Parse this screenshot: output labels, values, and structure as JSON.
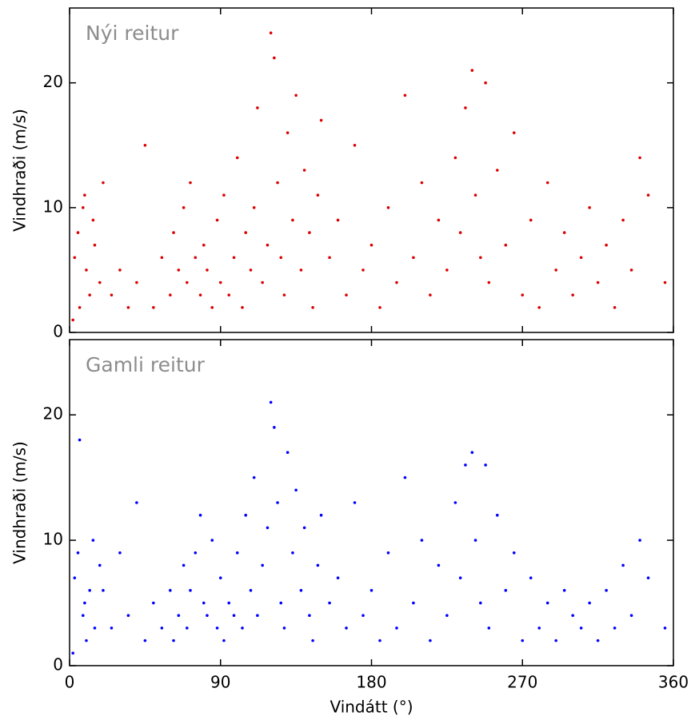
{
  "chart_data": [
    {
      "type": "scatter",
      "annotation": "Nýi reitur",
      "ylabel": "Vindhraði (m/s)",
      "color": "#dd0000",
      "xlim": [
        0,
        360
      ],
      "xticks": [
        0,
        90,
        180,
        270,
        360
      ],
      "ylim": [
        0,
        26
      ],
      "yticks": [
        0,
        10,
        20
      ],
      "x": [
        3,
        5,
        8,
        10,
        12,
        15,
        18,
        6,
        9,
        2,
        14,
        20,
        25,
        30,
        35,
        40,
        45,
        50,
        55,
        60,
        62,
        65,
        68,
        70,
        72,
        75,
        78,
        80,
        82,
        85,
        88,
        90,
        92,
        95,
        98,
        100,
        103,
        105,
        108,
        110,
        112,
        115,
        118,
        120,
        122,
        124,
        126,
        128,
        130,
        133,
        135,
        138,
        140,
        143,
        145,
        148,
        150,
        155,
        160,
        165,
        170,
        175,
        180,
        185,
        190,
        195,
        200,
        205,
        210,
        215,
        220,
        225,
        230,
        233,
        236,
        240,
        242,
        245,
        248,
        250,
        255,
        260,
        265,
        270,
        275,
        280,
        285,
        290,
        295,
        300,
        305,
        310,
        315,
        320,
        325,
        330,
        335,
        340,
        345,
        355
      ],
      "values": [
        6,
        8,
        10,
        5,
        3,
        7,
        4,
        2,
        11,
        1,
        9,
        12,
        3,
        5,
        2,
        4,
        15,
        2,
        6,
        3,
        8,
        5,
        10,
        4,
        12,
        6,
        3,
        7,
        5,
        2,
        9,
        4,
        11,
        3,
        6,
        14,
        2,
        8,
        5,
        10,
        18,
        4,
        7,
        24,
        22,
        12,
        6,
        3,
        16,
        9,
        19,
        5,
        13,
        8,
        2,
        11,
        17,
        6,
        9,
        3,
        15,
        5,
        7,
        2,
        10,
        4,
        19,
        6,
        12,
        3,
        9,
        5,
        14,
        8,
        18,
        21,
        11,
        6,
        20,
        4,
        13,
        7,
        16,
        3,
        9,
        2,
        12,
        5,
        8,
        3,
        6,
        10,
        4,
        7,
        2,
        9,
        5,
        14,
        11,
        4
      ]
    },
    {
      "type": "scatter",
      "annotation": "Gamli reitur",
      "ylabel": "Vindhraði (m/s)",
      "xlabel": "Vindátt (°)",
      "color": "#0000ff",
      "xlim": [
        0,
        360
      ],
      "xticks": [
        0,
        90,
        180,
        270,
        360
      ],
      "ylim": [
        0,
        26
      ],
      "yticks": [
        0,
        10,
        20
      ],
      "x": [
        3,
        5,
        8,
        10,
        12,
        15,
        18,
        6,
        9,
        2,
        14,
        20,
        25,
        30,
        35,
        40,
        45,
        50,
        55,
        60,
        62,
        65,
        68,
        70,
        72,
        75,
        78,
        80,
        82,
        85,
        88,
        90,
        92,
        95,
        98,
        100,
        103,
        105,
        108,
        110,
        112,
        115,
        118,
        120,
        122,
        124,
        126,
        128,
        130,
        133,
        135,
        138,
        140,
        143,
        145,
        148,
        150,
        155,
        160,
        165,
        170,
        175,
        180,
        185,
        190,
        195,
        200,
        205,
        210,
        215,
        220,
        225,
        230,
        233,
        236,
        240,
        242,
        245,
        248,
        250,
        255,
        260,
        265,
        270,
        275,
        280,
        285,
        290,
        295,
        300,
        305,
        310,
        315,
        320,
        325,
        330,
        335,
        340,
        345,
        355
      ],
      "values": [
        7,
        9,
        4,
        2,
        6,
        3,
        8,
        18,
        5,
        1,
        10,
        6,
        3,
        9,
        4,
        13,
        2,
        5,
        3,
        6,
        2,
        4,
        8,
        3,
        6,
        9,
        12,
        5,
        4,
        10,
        3,
        7,
        2,
        5,
        4,
        9,
        3,
        12,
        6,
        15,
        4,
        8,
        11,
        21,
        19,
        13,
        5,
        3,
        17,
        9,
        14,
        6,
        11,
        4,
        2,
        8,
        12,
        5,
        7,
        3,
        13,
        4,
        6,
        2,
        9,
        3,
        15,
        5,
        10,
        2,
        8,
        4,
        13,
        7,
        16,
        17,
        10,
        5,
        16,
        3,
        12,
        6,
        9,
        2,
        7,
        3,
        5,
        2,
        6,
        4,
        3,
        5,
        2,
        6,
        3,
        8,
        4,
        10,
        7,
        3
      ]
    }
  ]
}
